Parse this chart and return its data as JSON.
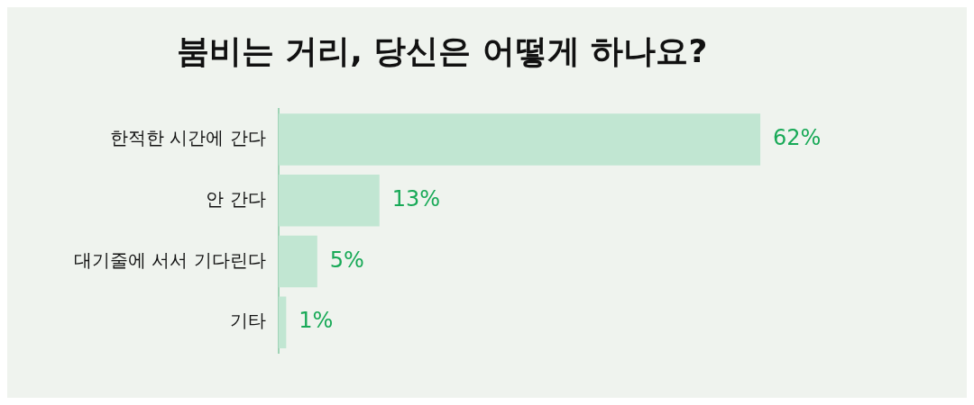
{
  "chart_data": {
    "type": "bar",
    "orientation": "horizontal",
    "title": "붐비는 거리, 당신은 어떻게 하나요?",
    "categories": [
      "한적한 시간에 간다",
      "안 간다",
      "대기줄에 서서 기다린다",
      "기타"
    ],
    "values": [
      62,
      13,
      5,
      1
    ],
    "value_labels": [
      "62%",
      "13%",
      "5%",
      "1%"
    ],
    "color": "#c1e6d2",
    "grid": false,
    "tick_labels": "y"
  }
}
